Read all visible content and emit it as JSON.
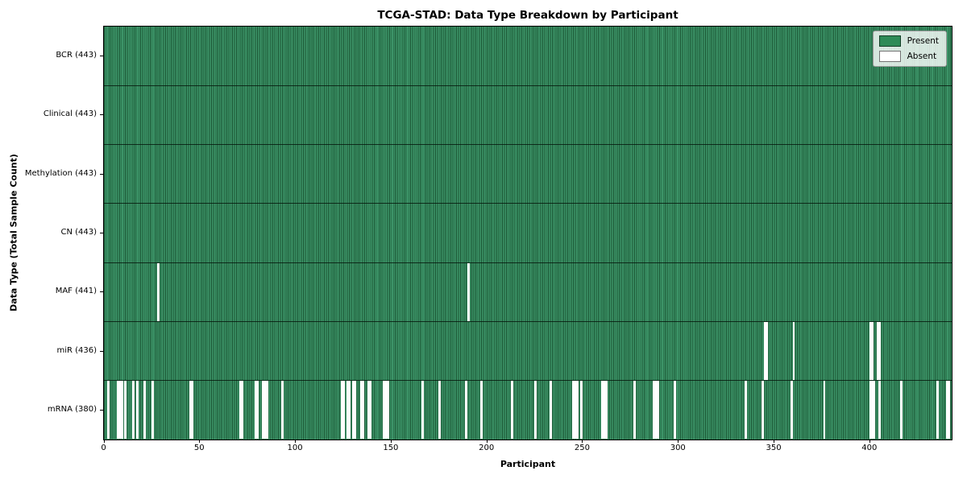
{
  "chart_data": {
    "type": "heatmap",
    "title": "TCGA-STAD: Data Type Breakdown by Participant",
    "xlabel": "Participant",
    "ylabel": "Data Type (Total Sample Count)",
    "xlim": [
      0,
      443
    ],
    "x_ticks": [
      0,
      50,
      100,
      150,
      200,
      250,
      300,
      350,
      400
    ],
    "n_participants": 443,
    "grid": "row-separators-only",
    "legend_position": "upper right",
    "legend_items": [
      {
        "label": "Present",
        "color": "#2e8b57"
      },
      {
        "label": "Absent",
        "color": "#ffffff"
      }
    ],
    "colors": {
      "present_fill": "#3c9468",
      "present_edge": "#1b5634",
      "absent_fill": "#ffffff",
      "spine": "#000000"
    },
    "rows": [
      {
        "label": "BCR (443)",
        "data_type": "BCR",
        "present_count": 443,
        "absent_participants": []
      },
      {
        "label": "Clinical (443)",
        "data_type": "Clinical",
        "present_count": 443,
        "absent_participants": []
      },
      {
        "label": "Methylation (443)",
        "data_type": "Methylation",
        "present_count": 443,
        "absent_participants": []
      },
      {
        "label": "CN (443)",
        "data_type": "CN",
        "present_count": 443,
        "absent_participants": []
      },
      {
        "label": "MAF (441)",
        "data_type": "MAF",
        "present_count": 441,
        "absent_participants": [
          28,
          190
        ]
      },
      {
        "label": "miR (436)",
        "data_type": "miR",
        "present_count": 436,
        "absent_participants": [
          345,
          346,
          360,
          400,
          401,
          404,
          405
        ]
      },
      {
        "label": "mRNA (380)",
        "data_type": "mRNA",
        "present_count": 380,
        "absent_participants": [
          2,
          7,
          8,
          9,
          11,
          15,
          17,
          21,
          25,
          45,
          46,
          71,
          72,
          79,
          80,
          83,
          84,
          85,
          93,
          124,
          125,
          127,
          128,
          130,
          131,
          134,
          135,
          138,
          139,
          146,
          147,
          148,
          166,
          175,
          189,
          197,
          213,
          225,
          233,
          245,
          246,
          247,
          249,
          260,
          261,
          262,
          277,
          287,
          288,
          289,
          298,
          335,
          344,
          359,
          376,
          400,
          401,
          402,
          405,
          416,
          435,
          440,
          441
        ]
      }
    ]
  }
}
